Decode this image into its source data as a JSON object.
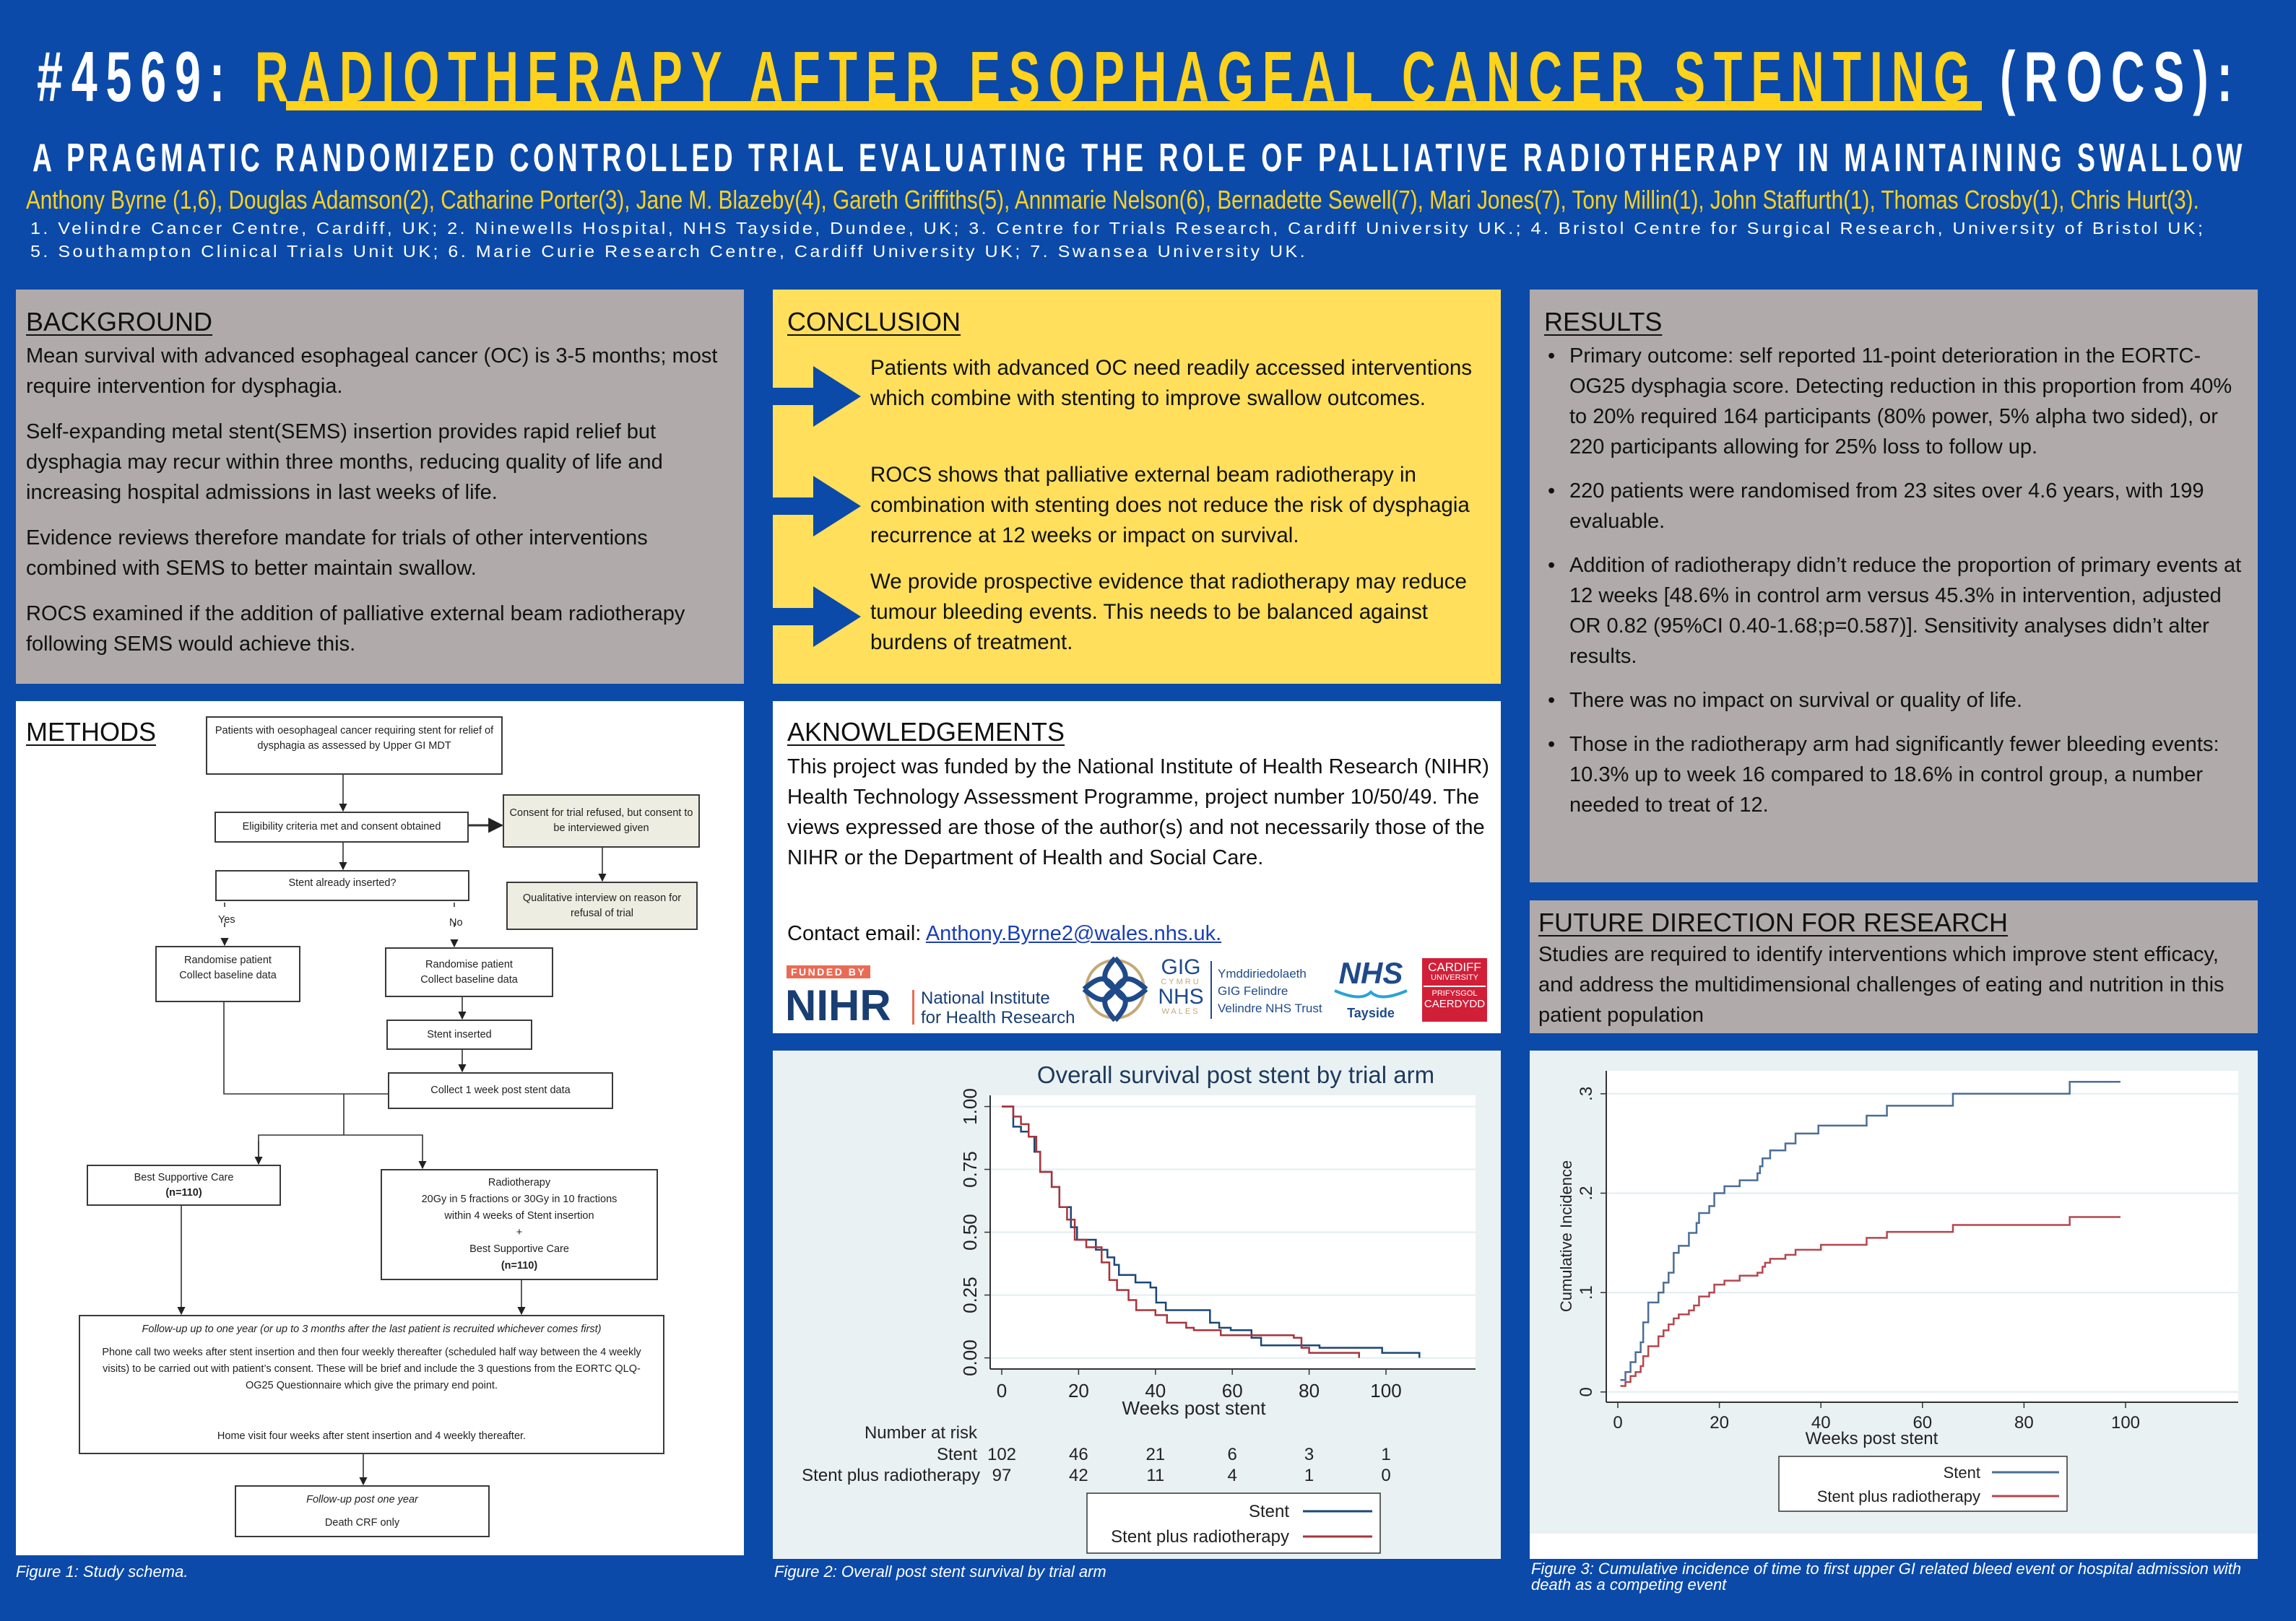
{
  "header": {
    "number": "#4569: ",
    "title_highlight": "RADIOTHERAPY AFTER ESOPHAGEAL CANCER STENTING",
    "title_suffix": " (ROCS):",
    "subtitle": "A PRAGMATIC RANDOMIZED CONTROLLED TRIAL EVALUATING THE ROLE OF PALLIATIVE RADIOTHERAPY IN MAINTAINING SWALLOW",
    "authors": "Anthony Byrne (1,6), Douglas Adamson(2), Catharine Porter(3), Jane M. Blazeby(4), Gareth Griffiths(5), Annmarie Nelson(6), Bernadette Sewell(7), Mari Jones(7), Tony Millin(1), John Staffurth(1), Thomas Crosby(1), Chris Hurt(3).",
    "affiliations": [
      "1. Velindre Cancer Centre, Cardiff, UK; 2. Ninewells Hospital, NHS Tayside, Dundee, UK;  3. Centre for Trials Research, Cardiff University UK.; 4. Bristol Centre for Surgical Research, University of Bristol UK;",
      "5. Southampton Clinical Trials Unit UK; 6. Marie Curie Research Centre, Cardiff University UK; 7. Swansea University UK."
    ]
  },
  "background": {
    "heading": "BACKGROUND",
    "paragraphs": [
      "Mean survival with advanced esophageal cancer (OC) is 3-5 months; most require intervention for dysphagia.",
      "Self-expanding metal stent(SEMS) insertion provides rapid relief but dysphagia may recur within three months, reducing quality of life and increasing hospital admissions in last weeks of life.",
      "Evidence reviews therefore mandate for trials of other interventions combined with SEMS to better maintain swallow.",
      "ROCS examined if  the addition of palliative external beam radiotherapy following SEMS would achieve this."
    ]
  },
  "conclusion": {
    "heading": "CONCLUSION",
    "items": [
      "Patients with advanced OC need  readily accessed interventions  which combine with stenting to improve swallow outcomes.",
      "ROCS shows that  palliative external beam radiotherapy in combination  with stenting does not reduce the risk of dysphagia recurrence at 12 weeks or impact on survival.",
      "We provide prospective evidence that radiotherapy may reduce tumour bleeding events. This needs to be balanced against burdens of treatment."
    ]
  },
  "results": {
    "heading": "RESULTS",
    "bullet": "•",
    "items": [
      "Primary outcome: self reported 11-point deterioration in the EORTC-OG25 dysphagia score. Detecting reduction in this proportion from 40% to 20% required 164 participants (80% power, 5% alpha two sided), or 220 participants allowing for 25% loss to follow up.",
      "220 patients were randomised from 23 sites over 4.6 years, with 199 evaluable.",
      "Addition of radiotherapy didn’t reduce the proportion of primary events at 12 weeks [48.6% in control arm versus 45.3% in intervention, adjusted OR 0.82 (95%CI 0.40-1.68;p=0.587)]. Sensitivity analyses didn’t alter results.",
      "There was no impact on survival or quality of life.",
      "Those in the radiotherapy arm had significantly fewer bleeding events: 10.3% up to week 16 compared to 18.6% in control group, a number needed to treat of 12."
    ]
  },
  "methods": {
    "heading": "METHODS",
    "flow": {
      "patients": "Patients with oesophageal cancer requiring stent for relief of dysphagia as assessed by Upper GI MDT",
      "eligibility": "Eligibility criteria met and consent obtained",
      "consent_refused": "Consent for trial refused, but consent to be interviewed given",
      "stent_already": "Stent already inserted?",
      "qualitative": "Qualitative interview on reason for refusal of trial",
      "yes": "Yes",
      "no": "No",
      "randomise_1": "Randomise patient",
      "baseline_1": "Collect baseline data",
      "randomise_2": "Randomise patient",
      "baseline_2": "Collect baseline data",
      "stent_inserted": "Stent inserted",
      "collect_week": "Collect 1 week post stent data",
      "bsc_title": "Best Supportive Care",
      "bsc_n": "(n=110)",
      "rt_title": "Radiotherapy",
      "rt_dose": "20Gy in 5 fractions or 30Gy in 10 fractions",
      "rt_within": "within 4 weeks of Stent insertion",
      "rt_plus": "+",
      "rt_bsc": "Best Supportive Care",
      "rt_n": "(n=110)",
      "followup_title": "Follow-up up to one year (or up to 3 months after the last patient is recruited whichever comes first)",
      "followup_phone": "Phone call two weeks after stent insertion and then four weekly thereafter (scheduled half way between the 4 weekly visits) to be carried out with patient’s consent. These will be brief and include the 3 questions from the EORTC QLQ-OG25 Questionnaire which give the primary end point.",
      "followup_home": "Home visit four weeks after stent insertion and 4 weekly thereafter.",
      "post_title": "Follow-up post one year",
      "post_death": "Death CRF only"
    },
    "caption": "Figure 1: Study schema."
  },
  "acknowledgements": {
    "heading": "AKNOWLEDGEMENTS",
    "text": "This project was funded by the National Institute of Health Research (NIHR) Health Technology Assessment Programme, project number 10/50/49. The views expressed are those of the author(s) and not necessarily those of the NIHR or the Department of Health and Social Care.",
    "contact_label": "Contact email: ",
    "contact_email": "Anthony.Byrne2@wales.nhs.uk.",
    "logos": {
      "funded_by": "FUNDED BY",
      "nihr": "NIHR",
      "nihr_name_1": "National Institute",
      "nihr_name_2": "for Health Research",
      "gig": "GIG",
      "cymru": "CYMRU",
      "nhs": "NHS",
      "wales": "WALES",
      "velindre_1": "Ymddiriedolaeth",
      "velindre_2": "GIG Felindre",
      "velindre_3": "Velindre NHS Trust",
      "tayside_nhs": "NHS",
      "tayside": "Tayside",
      "cardiff_1": "CARDIFF",
      "cardiff_2": "UNIVERSITY",
      "cardiff_3": "PRIFYSGOL",
      "cardiff_4": "CAERDYDD"
    }
  },
  "future": {
    "heading": "FUTURE DIRECTION FOR RESEARCH",
    "text": "Studies are required to identify interventions which improve stent efficacy, and address the multidimensional challenges of eating and nutrition in this patient population"
  },
  "colors": {
    "background": "#0b4aa9",
    "accent_yellow": "#ffd21c",
    "panel_gray": "#b0aaaa",
    "panel_yellow": "#ffdf5c",
    "stent_fig2": "#1a4778",
    "rt_fig2": "#a8343c",
    "stent_fig3": "#4c6e96",
    "rt_fig3": "#b4474f"
  },
  "chart_data": [
    {
      "type": "line",
      "step": true,
      "title": "Overall survival post stent by trial arm",
      "xlabel": "Weeks post stent",
      "ylabel": "",
      "xlim": [
        0,
        120
      ],
      "ylim": [
        0,
        1
      ],
      "xticks": [
        0,
        20,
        40,
        60,
        80,
        100
      ],
      "yticks": [
        0,
        0.25,
        0.5,
        0.75,
        1
      ],
      "ytick_labels": [
        "0.00",
        "0.25",
        "0.50",
        "0.75",
        "1.00"
      ],
      "grid": true,
      "legend": "bottom",
      "series": [
        {
          "name": "Stent",
          "points": [
            [
              0,
              1
            ],
            [
              3,
              0.92
            ],
            [
              5,
              0.9
            ],
            [
              7,
              0.88
            ],
            [
              8.5,
              0.82
            ],
            [
              10,
              0.74
            ],
            [
              13,
              0.68
            ],
            [
              15,
              0.6
            ],
            [
              18,
              0.52
            ],
            [
              19.6,
              0.47
            ],
            [
              24.5,
              0.43
            ],
            [
              27.5,
              0.4
            ],
            [
              29.3,
              0.37
            ],
            [
              30.5,
              0.33
            ],
            [
              34.8,
              0.3
            ],
            [
              38.7,
              0.28
            ],
            [
              40.2,
              0.22
            ],
            [
              42.7,
              0.19
            ],
            [
              54.2,
              0.14
            ],
            [
              56.6,
              0.12
            ],
            [
              59.6,
              0.11
            ],
            [
              65,
              0.08
            ],
            [
              67.5,
              0.05
            ],
            [
              82.7,
              0.04
            ],
            [
              99,
              0.02
            ],
            [
              108.7,
              0
            ]
          ]
        },
        {
          "name": "Stent plus radiotherapy",
          "points": [
            [
              0,
              1
            ],
            [
              3,
              0.96
            ],
            [
              5,
              0.93
            ],
            [
              7,
              0.88
            ],
            [
              9,
              0.82
            ],
            [
              10,
              0.74
            ],
            [
              13,
              0.68
            ],
            [
              15,
              0.6
            ],
            [
              17,
              0.55
            ],
            [
              19,
              0.47
            ],
            [
              22,
              0.44
            ],
            [
              26,
              0.38
            ],
            [
              28,
              0.31
            ],
            [
              30,
              0.27
            ],
            [
              33,
              0.23
            ],
            [
              35,
              0.19
            ],
            [
              40,
              0.17
            ],
            [
              43,
              0.14
            ],
            [
              48,
              0.12
            ],
            [
              50,
              0.11
            ],
            [
              57,
              0.09
            ],
            [
              76,
              0.08
            ],
            [
              78,
              0.04
            ],
            [
              80,
              0.02
            ],
            [
              93,
              0
            ]
          ]
        }
      ],
      "risk_table": {
        "header": "Number at risk",
        "weeks": [
          0,
          20,
          40,
          60,
          80,
          100
        ],
        "rows": [
          {
            "label": "Stent",
            "values": [
              "102",
              "46",
              "21",
              "6",
              "3",
              "1"
            ]
          },
          {
            "label": "Stent plus radiotherapy",
            "values": [
              "97",
              "42",
              "11",
              "4",
              "1",
              "0"
            ]
          }
        ]
      },
      "caption": "Figure 2: Overall post stent survival by trial arm"
    },
    {
      "type": "line",
      "step": true,
      "title": "",
      "xlabel": "Weeks post stent",
      "ylabel": "Cumulative Incidence",
      "xlim": [
        0,
        120
      ],
      "ylim": [
        0,
        0.3
      ],
      "xticks": [
        0,
        20,
        40,
        60,
        80,
        100
      ],
      "yticks": [
        0,
        0.1,
        0.2,
        0.3
      ],
      "ytick_labels": [
        "0",
        ".1",
        ".2",
        ".3"
      ],
      "grid": true,
      "legend": "bottom",
      "series": [
        {
          "name": "Stent",
          "points": [
            [
              0.5,
              0.012
            ],
            [
              1.5,
              0.02
            ],
            [
              2.5,
              0.03
            ],
            [
              3.5,
              0.04
            ],
            [
              4.5,
              0.05
            ],
            [
              5,
              0.07
            ],
            [
              6,
              0.09
            ],
            [
              8,
              0.1
            ],
            [
              9,
              0.11
            ],
            [
              10,
              0.12
            ],
            [
              11,
              0.14
            ],
            [
              12,
              0.147
            ],
            [
              14,
              0.16
            ],
            [
              15.5,
              0.17
            ],
            [
              16,
              0.18
            ],
            [
              18,
              0.187
            ],
            [
              19,
              0.2
            ],
            [
              21,
              0.207
            ],
            [
              24,
              0.213
            ],
            [
              27.5,
              0.22
            ],
            [
              28,
              0.227
            ],
            [
              28.5,
              0.235
            ],
            [
              30,
              0.243
            ],
            [
              33,
              0.25
            ],
            [
              35,
              0.26
            ],
            [
              39.5,
              0.268
            ],
            [
              49,
              0.278
            ],
            [
              53,
              0.288
            ],
            [
              66,
              0.3
            ],
            [
              89,
              0.312
            ],
            [
              99,
              0.312
            ]
          ]
        },
        {
          "name": "Stent plus radiotherapy",
          "points": [
            [
              0.5,
              0.006
            ],
            [
              1.5,
              0.01
            ],
            [
              2.5,
              0.016
            ],
            [
              3.5,
              0.02
            ],
            [
              4.5,
              0.026
            ],
            [
              5,
              0.036
            ],
            [
              6,
              0.046
            ],
            [
              8,
              0.056
            ],
            [
              9,
              0.062
            ],
            [
              10,
              0.068
            ],
            [
              11,
              0.074
            ],
            [
              12,
              0.078
            ],
            [
              14,
              0.082
            ],
            [
              15,
              0.087
            ],
            [
              16,
              0.096
            ],
            [
              18,
              0.1
            ],
            [
              19,
              0.108
            ],
            [
              21,
              0.112
            ],
            [
              24,
              0.117
            ],
            [
              27.5,
              0.12
            ],
            [
              28.5,
              0.126
            ],
            [
              29,
              0.13
            ],
            [
              30,
              0.134
            ],
            [
              33,
              0.138
            ],
            [
              35,
              0.143
            ],
            [
              40,
              0.148
            ],
            [
              49,
              0.155
            ],
            [
              53,
              0.161
            ],
            [
              66,
              0.168
            ],
            [
              89,
              0.176
            ],
            [
              99,
              0.176
            ]
          ]
        }
      ],
      "caption": "Figure 3: Cumulative incidence of time to first upper GI related bleed event or hospital admission with death as a competing event"
    }
  ]
}
